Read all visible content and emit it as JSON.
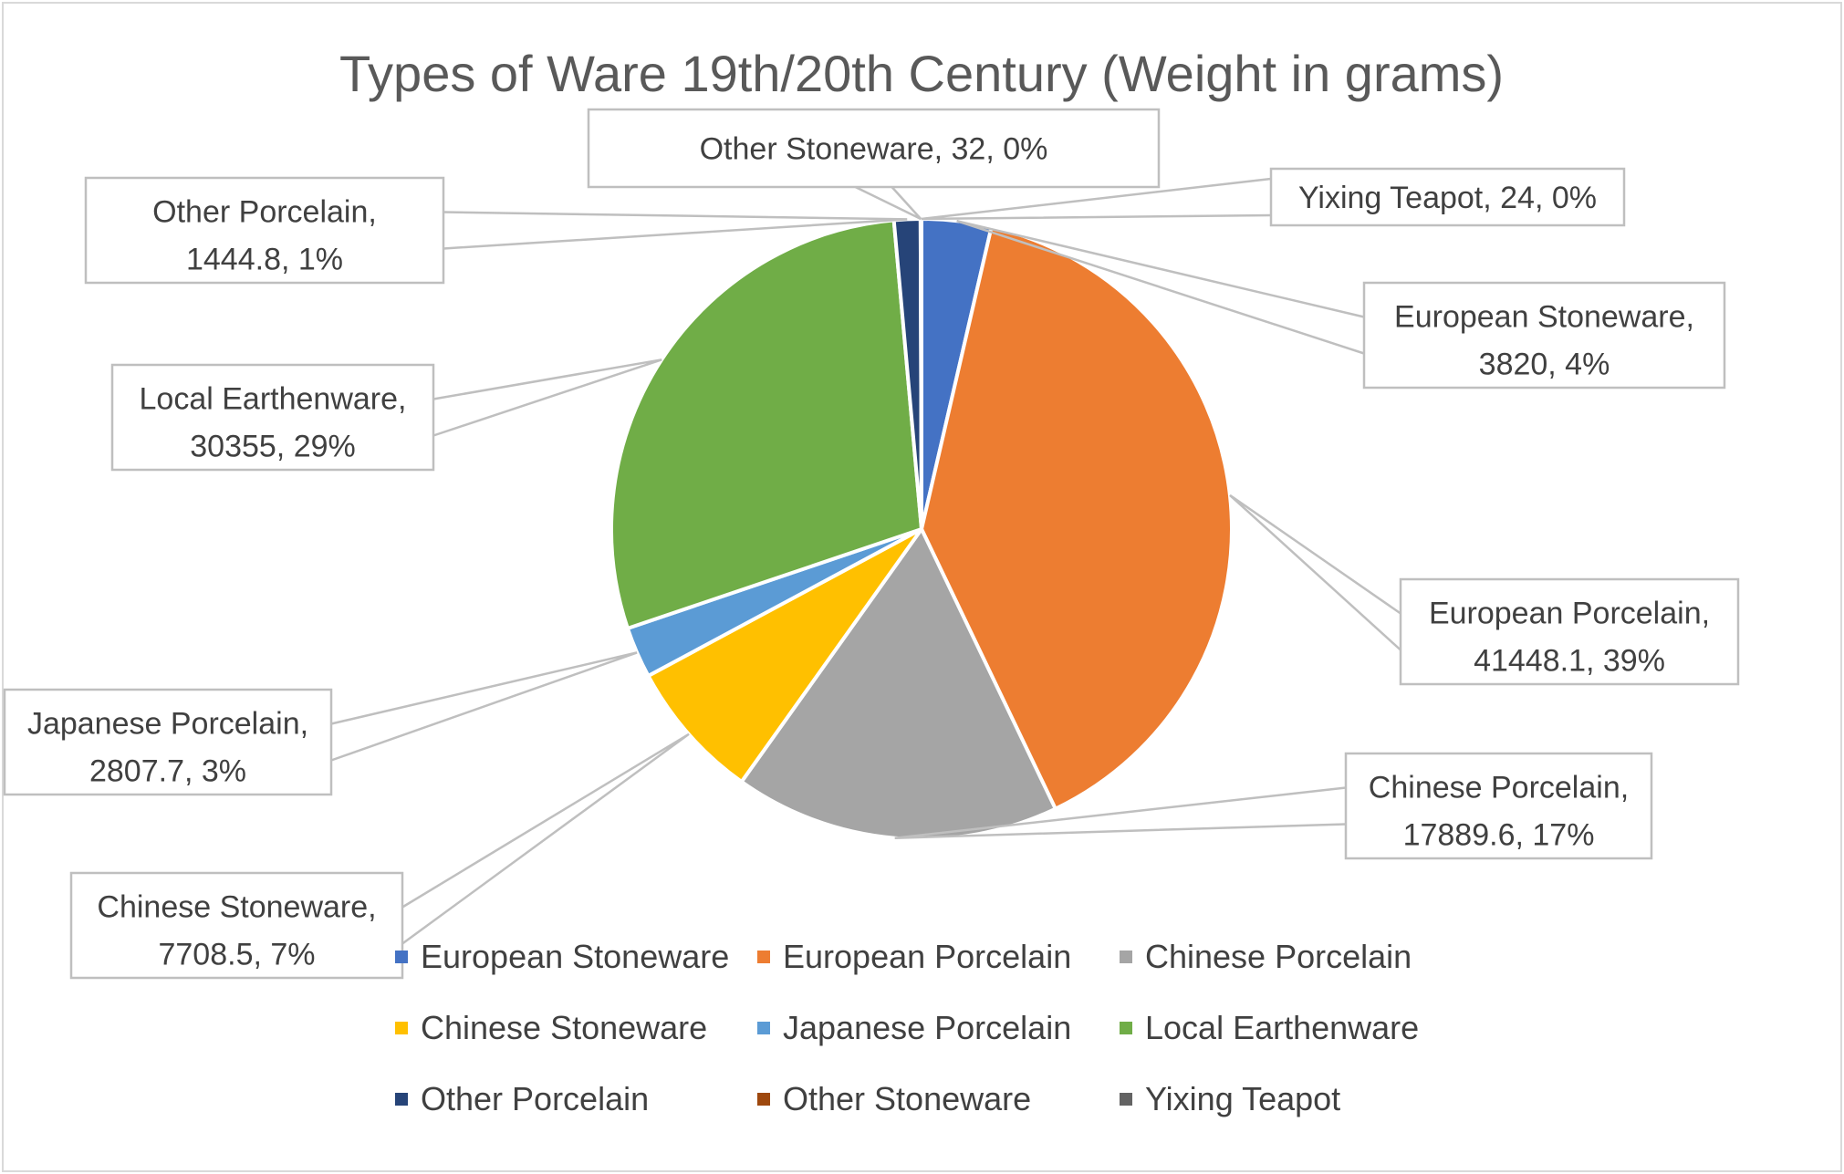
{
  "chart_data": {
    "type": "pie",
    "title": "Types of Ware 19th/20th Century (Weight in grams)",
    "legend_position": "bottom",
    "slices": [
      {
        "name": "European Stoneware",
        "value": 3820,
        "percent": "4%",
        "color": "#4472C4"
      },
      {
        "name": "European Porcelain",
        "value": 41448.1,
        "percent": "39%",
        "color": "#ED7D31"
      },
      {
        "name": "Chinese Porcelain",
        "value": 17889.6,
        "percent": "17%",
        "color": "#A5A5A5"
      },
      {
        "name": "Chinese Stoneware",
        "value": 7708.5,
        "percent": "7%",
        "color": "#FFC000"
      },
      {
        "name": "Japanese Porcelain",
        "value": 2807.7,
        "percent": "3%",
        "color": "#5B9BD5"
      },
      {
        "name": "Local Earthenware",
        "value": 30355,
        "percent": "29%",
        "color": "#70AD47"
      },
      {
        "name": "Other Porcelain",
        "value": 1444.8,
        "percent": "1%",
        "color": "#264478"
      },
      {
        "name": "Other Stoneware",
        "value": 32,
        "percent": "0%",
        "color": "#9E480E"
      },
      {
        "name": "Yixing Teapot",
        "value": 24,
        "percent": "0%",
        "color": "#636363"
      }
    ]
  }
}
